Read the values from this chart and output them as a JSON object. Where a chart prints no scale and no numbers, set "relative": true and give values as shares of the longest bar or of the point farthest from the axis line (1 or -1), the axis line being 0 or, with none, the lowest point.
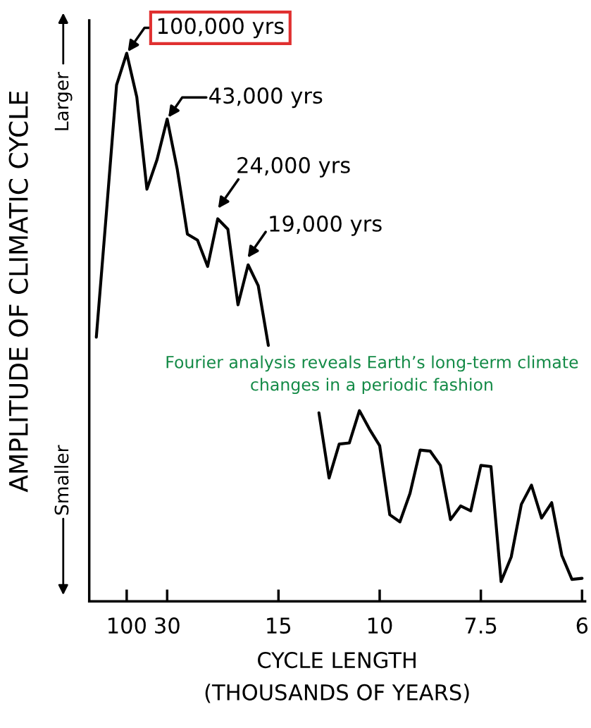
{
  "chart_data": {
    "type": "line",
    "relative": true,
    "ylabel": "AMPLITUDE OF CLIMATIC CYCLE",
    "xlabel": "CYCLE LENGTH\n(THOUSANDS OF YEARS)",
    "categories": [
      null,
      null,
      null,
      "100",
      null,
      null,
      null,
      "30",
      null,
      null,
      null,
      null,
      null,
      null,
      null,
      null,
      null,
      null,
      "15",
      null,
      null,
      null,
      null,
      null,
      null,
      null,
      null,
      null,
      "10",
      null,
      null,
      null,
      null,
      null,
      null,
      null,
      null,
      null,
      "7.5",
      null,
      null,
      null,
      null,
      null,
      null,
      null,
      null,
      null,
      "6"
    ],
    "series": [
      {
        "color": "#000000",
        "values": [
          0.482,
          0.71,
          0.942,
          1.0,
          0.92,
          0.752,
          0.806,
          0.88,
          0.788,
          0.67,
          0.659,
          0.611,
          0.698,
          0.679,
          0.541,
          0.614,
          0.576,
          0.467,
          null,
          null,
          null,
          null,
          0.344,
          0.225,
          0.287,
          0.289,
          0.348,
          0.314,
          0.284,
          0.158,
          0.145,
          0.197,
          0.276,
          0.274,
          0.248,
          0.149,
          0.174,
          0.165,
          0.248,
          0.246,
          0.036,
          0.081,
          0.177,
          0.212,
          0.152,
          0.18,
          0.084,
          0.04,
          0.042
        ]
      }
    ],
    "annotations": [
      {
        "text": "100,000 yrs",
        "x": "100",
        "y": 1.0
      },
      {
        "text": "43,000 yrs",
        "x": "30",
        "y": 0.88
      },
      "24,000 yrs",
      "19,000 yrs",
      "Larger",
      "Smaller",
      "Fourier analysis reveals Earth’s long-term climate changes in a periodic fashion"
    ],
    "grid": false,
    "marker": "none",
    "line_style": "solid"
  }
}
